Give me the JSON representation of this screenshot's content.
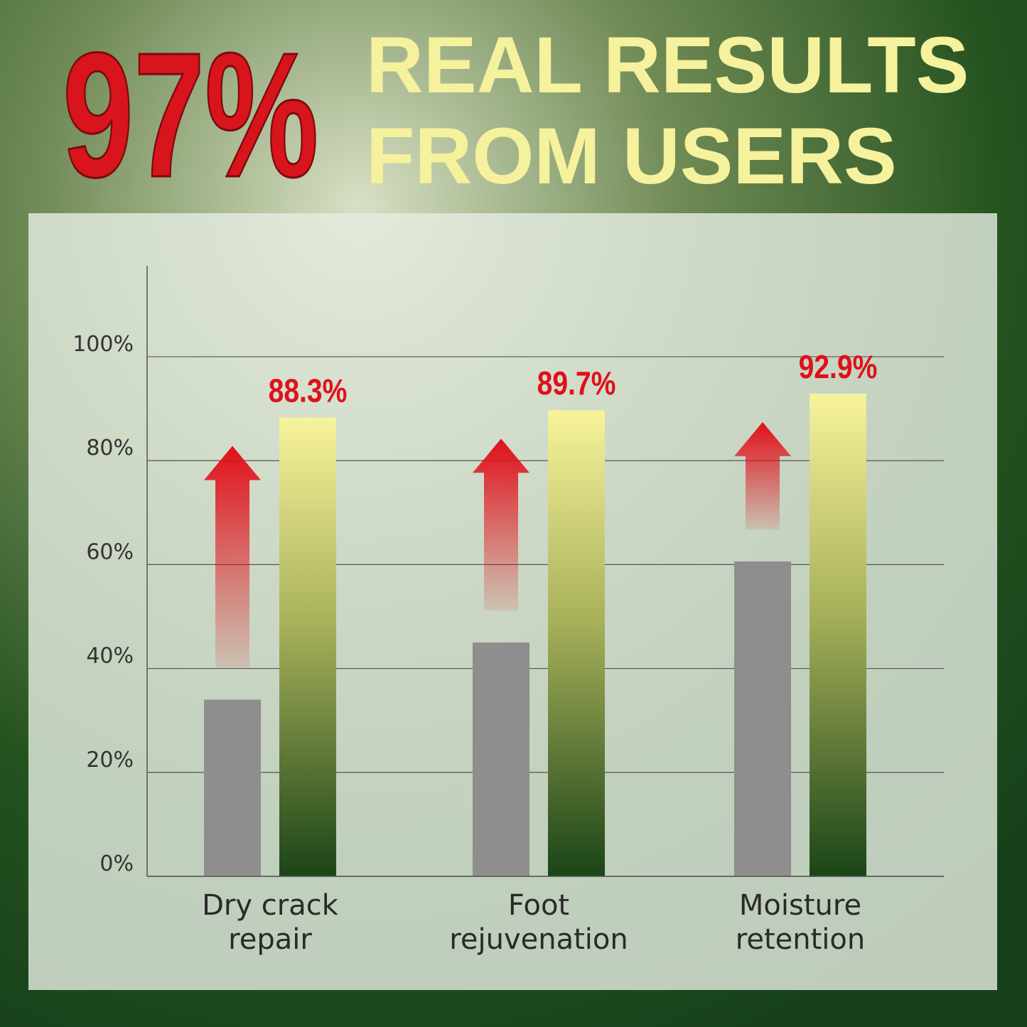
{
  "chart_data": {
    "type": "bar",
    "title_highlight": "97%",
    "title_lines": [
      "REAL RESULTS",
      "FROM USERS"
    ],
    "categories": [
      "Dry crack\nrepair",
      "Foot\nrejuvenation",
      "Moisture\nretention"
    ],
    "series": [
      {
        "color": "#8e8e8e",
        "values": [
          34,
          45,
          60.6
        ]
      },
      {
        "color": "#f6f29a",
        "values": [
          88.3,
          89.7,
          92.9
        ],
        "value_labels": [
          "88.3%",
          "89.7%",
          "92.9%"
        ]
      }
    ],
    "ylim": [
      0,
      117.5
    ],
    "yticks": [
      {
        "value": 0,
        "label": "0%"
      },
      {
        "value": 20,
        "label": "20%"
      },
      {
        "value": 40,
        "label": "40%"
      },
      {
        "value": 60,
        "label": "60%"
      },
      {
        "value": 80,
        "label": "80%"
      },
      {
        "value": 100,
        "label": "100%"
      }
    ],
    "grid": true
  }
}
